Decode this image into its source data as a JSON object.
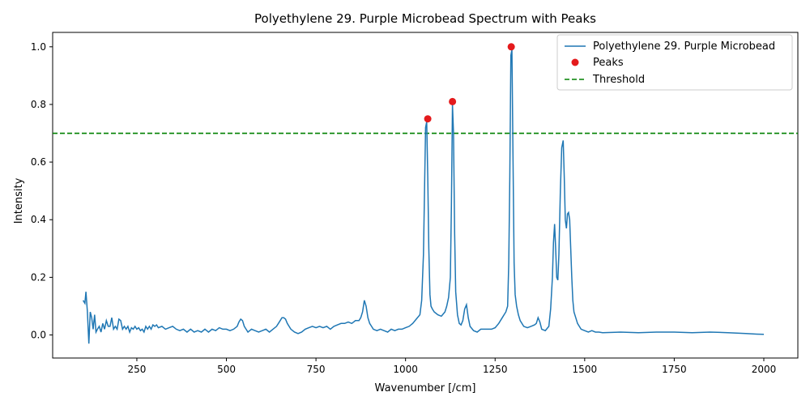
{
  "chart_data": {
    "type": "line",
    "title": "Polyethylene 29. Purple Microbead Spectrum with Peaks",
    "xlabel": "Wavenumber [/cm]",
    "ylabel": "Intensity",
    "xlim": [
      15,
      2095
    ],
    "ylim": [
      -0.08,
      1.05
    ],
    "xticks": [
      250,
      500,
      750,
      1000,
      1250,
      1500,
      1750,
      2000
    ],
    "xtick_labels": [
      "250",
      "500",
      "750",
      "1000",
      "1250",
      "1500",
      "1750",
      "2000"
    ],
    "yticks": [
      0.0,
      0.2,
      0.4,
      0.6,
      0.8,
      1.0
    ],
    "ytick_labels": [
      "0.0",
      "0.2",
      "0.4",
      "0.6",
      "0.8",
      "1.0"
    ],
    "grid": false,
    "legend_position": "top-right",
    "series": [
      {
        "name": "Polyethylene 29. Purple Microbead",
        "color": "#1f77b4",
        "x": [
          100,
          105,
          108,
          112,
          116,
          120,
          124,
          128,
          132,
          136,
          140,
          145,
          150,
          155,
          160,
          165,
          170,
          175,
          180,
          185,
          190,
          195,
          200,
          205,
          210,
          215,
          220,
          225,
          230,
          235,
          240,
          245,
          250,
          255,
          260,
          265,
          270,
          275,
          280,
          285,
          290,
          295,
          300,
          305,
          310,
          320,
          330,
          340,
          350,
          360,
          370,
          380,
          390,
          400,
          410,
          420,
          430,
          440,
          450,
          460,
          470,
          480,
          490,
          500,
          510,
          520,
          530,
          535,
          540,
          545,
          550,
          555,
          560,
          565,
          570,
          580,
          590,
          600,
          610,
          620,
          630,
          640,
          645,
          650,
          655,
          660,
          665,
          670,
          675,
          680,
          690,
          700,
          710,
          720,
          730,
          740,
          750,
          760,
          770,
          780,
          790,
          800,
          810,
          820,
          830,
          840,
          850,
          860,
          870,
          875,
          880,
          885,
          890,
          895,
          900,
          905,
          910,
          920,
          930,
          940,
          950,
          960,
          970,
          980,
          990,
          1000,
          1010,
          1020,
          1030,
          1040,
          1045,
          1050,
          1053,
          1056,
          1059,
          1062,
          1065,
          1068,
          1071,
          1075,
          1080,
          1090,
          1100,
          1110,
          1115,
          1120,
          1125,
          1128,
          1131,
          1134,
          1137,
          1140,
          1145,
          1150,
          1155,
          1160,
          1165,
          1170,
          1175,
          1180,
          1190,
          1200,
          1210,
          1220,
          1230,
          1240,
          1250,
          1260,
          1270,
          1275,
          1280,
          1285,
          1288,
          1291,
          1294,
          1297,
          1300,
          1303,
          1306,
          1310,
          1315,
          1320,
          1330,
          1340,
          1350,
          1360,
          1365,
          1370,
          1375,
          1380,
          1390,
          1400,
          1405,
          1410,
          1413,
          1416,
          1419,
          1422,
          1425,
          1428,
          1432,
          1436,
          1440,
          1443,
          1446,
          1449,
          1452,
          1455,
          1458,
          1461,
          1464,
          1467,
          1470,
          1475,
          1480,
          1485,
          1490,
          1500,
          1510,
          1520,
          1530,
          1540,
          1550,
          1600,
          1650,
          1700,
          1750,
          1800,
          1850,
          1900,
          1950,
          1980,
          2000
        ],
        "y": [
          0.12,
          0.11,
          0.15,
          0.08,
          -0.03,
          0.08,
          0.06,
          0.02,
          0.07,
          0.01,
          0.02,
          0.03,
          0.01,
          0.04,
          0.02,
          0.05,
          0.03,
          0.03,
          0.06,
          0.02,
          0.03,
          0.02,
          0.055,
          0.05,
          0.02,
          0.03,
          0.02,
          0.03,
          0.01,
          0.025,
          0.02,
          0.03,
          0.02,
          0.025,
          0.015,
          0.02,
          0.01,
          0.03,
          0.02,
          0.03,
          0.02,
          0.035,
          0.03,
          0.035,
          0.025,
          0.03,
          0.02,
          0.025,
          0.03,
          0.02,
          0.015,
          0.02,
          0.01,
          0.02,
          0.01,
          0.015,
          0.01,
          0.02,
          0.01,
          0.02,
          0.015,
          0.025,
          0.02,
          0.02,
          0.015,
          0.02,
          0.03,
          0.045,
          0.055,
          0.05,
          0.03,
          0.02,
          0.01,
          0.015,
          0.02,
          0.015,
          0.01,
          0.015,
          0.02,
          0.01,
          0.02,
          0.03,
          0.04,
          0.05,
          0.06,
          0.06,
          0.055,
          0.04,
          0.03,
          0.02,
          0.01,
          0.005,
          0.01,
          0.02,
          0.025,
          0.03,
          0.025,
          0.03,
          0.025,
          0.03,
          0.02,
          0.03,
          0.035,
          0.04,
          0.04,
          0.045,
          0.04,
          0.05,
          0.05,
          0.06,
          0.08,
          0.12,
          0.1,
          0.06,
          0.04,
          0.03,
          0.02,
          0.015,
          0.02,
          0.015,
          0.01,
          0.02,
          0.015,
          0.02,
          0.02,
          0.025,
          0.03,
          0.04,
          0.055,
          0.07,
          0.12,
          0.28,
          0.5,
          0.72,
          0.74,
          0.55,
          0.3,
          0.14,
          0.1,
          0.09,
          0.08,
          0.07,
          0.065,
          0.08,
          0.1,
          0.13,
          0.2,
          0.45,
          0.8,
          0.7,
          0.35,
          0.15,
          0.07,
          0.04,
          0.035,
          0.05,
          0.09,
          0.105,
          0.06,
          0.03,
          0.015,
          0.01,
          0.02,
          0.02,
          0.02,
          0.02,
          0.025,
          0.04,
          0.06,
          0.07,
          0.08,
          0.1,
          0.25,
          0.55,
          0.97,
          0.99,
          0.6,
          0.25,
          0.14,
          0.1,
          0.07,
          0.05,
          0.03,
          0.025,
          0.03,
          0.035,
          0.04,
          0.06,
          0.045,
          0.02,
          0.015,
          0.03,
          0.09,
          0.2,
          0.32,
          0.385,
          0.3,
          0.2,
          0.19,
          0.28,
          0.5,
          0.65,
          0.675,
          0.55,
          0.4,
          0.37,
          0.42,
          0.425,
          0.4,
          0.3,
          0.2,
          0.12,
          0.08,
          0.06,
          0.04,
          0.03,
          0.02,
          0.015,
          0.01,
          0.015,
          0.01,
          0.01,
          0.008,
          0.01,
          0.008,
          0.01,
          0.01,
          0.008,
          0.01,
          0.008,
          0.005,
          0.003,
          0.002
        ]
      }
    ],
    "peaks": {
      "name": "Peaks",
      "color": "#e41a1c",
      "x": [
        1062,
        1131,
        1295
      ],
      "y": [
        0.75,
        0.81,
        1.0
      ]
    },
    "threshold": {
      "name": "Threshold",
      "color": "#008000",
      "value": 0.7
    }
  }
}
